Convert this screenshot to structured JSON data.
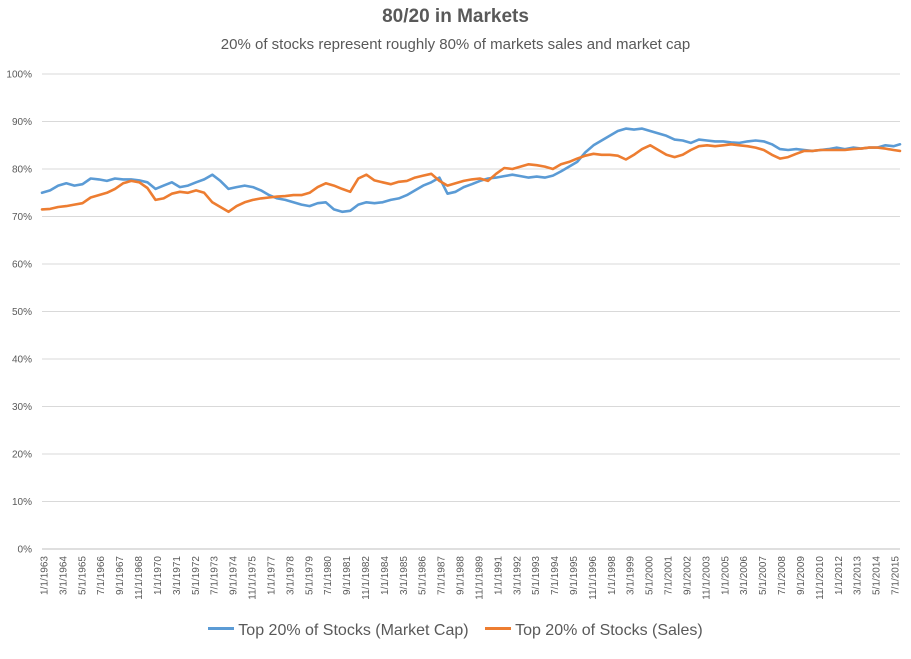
{
  "chart_data": {
    "type": "line",
    "title": "80/20 in Markets",
    "subtitle": "20% of stocks represent roughly 80% of markets sales and market cap",
    "xlabel": "",
    "ylabel": "",
    "ylim": [
      0,
      1.0
    ],
    "y_tick_labels": [
      "0%",
      "10%",
      "20%",
      "30%",
      "40%",
      "50%",
      "60%",
      "70%",
      "80%",
      "90%",
      "100%"
    ],
    "x_tick_labels": [
      "1/1/1963",
      "3/1/1964",
      "5/1/1965",
      "7/1/1966",
      "9/1/1967",
      "11/1/1968",
      "1/1/1970",
      "3/1/1971",
      "5/1/1972",
      "7/1/1973",
      "9/1/1974",
      "11/1/1975",
      "1/1/1977",
      "3/1/1978",
      "5/1/1979",
      "7/1/1980",
      "9/1/1981",
      "11/1/1982",
      "1/1/1984",
      "3/1/1985",
      "5/1/1986",
      "7/1/1987",
      "9/1/1988",
      "11/1/1989",
      "1/1/1991",
      "3/1/1992",
      "5/1/1993",
      "7/1/1994",
      "9/1/1995",
      "11/1/1996",
      "1/1/1998",
      "3/1/1999",
      "5/1/2000",
      "7/1/2001",
      "9/1/2002",
      "11/1/2003",
      "1/1/2005",
      "3/1/2006",
      "5/1/2007",
      "7/1/2008",
      "9/1/2009",
      "11/1/2010",
      "1/1/2012",
      "3/1/2013",
      "5/1/2014",
      "7/1/2015"
    ],
    "x": [
      1963.0,
      1963.5,
      1964.0,
      1964.5,
      1965.0,
      1965.5,
      1966.0,
      1966.5,
      1967.0,
      1967.5,
      1968.0,
      1968.5,
      1969.0,
      1969.5,
      1970.0,
      1970.5,
      1971.0,
      1971.5,
      1972.0,
      1972.5,
      1973.0,
      1973.5,
      1974.0,
      1974.5,
      1975.0,
      1975.5,
      1976.0,
      1976.5,
      1977.0,
      1977.5,
      1978.0,
      1978.5,
      1979.0,
      1979.5,
      1980.0,
      1980.5,
      1981.0,
      1981.5,
      1982.0,
      1982.5,
      1983.0,
      1983.5,
      1984.0,
      1984.5,
      1985.0,
      1985.5,
      1986.0,
      1986.5,
      1987.0,
      1987.5,
      1988.0,
      1988.5,
      1989.0,
      1989.5,
      1990.0,
      1990.5,
      1991.0,
      1991.5,
      1992.0,
      1992.5,
      1993.0,
      1993.5,
      1994.0,
      1994.5,
      1995.0,
      1995.5,
      1996.0,
      1996.5,
      1997.0,
      1997.5,
      1998.0,
      1998.5,
      1999.0,
      1999.5,
      2000.0,
      2000.5,
      2001.0,
      2001.5,
      2002.0,
      2002.5,
      2003.0,
      2003.5,
      2004.0,
      2004.5,
      2005.0,
      2005.5,
      2006.0,
      2006.5,
      2007.0,
      2007.5,
      2008.0,
      2008.5,
      2009.0,
      2009.5,
      2010.0,
      2010.5,
      2011.0,
      2011.5,
      2012.0,
      2012.5,
      2013.0,
      2013.5,
      2014.0,
      2014.5,
      2015.0,
      2015.5,
      2015.9
    ],
    "x_min": 1963.0,
    "x_max": 2015.9,
    "grid": true,
    "legend_position": "bottom",
    "series": [
      {
        "name": "Top 20% of Stocks (Market Cap)",
        "color": "#5B9BD5",
        "values": [
          0.75,
          0.755,
          0.765,
          0.77,
          0.765,
          0.768,
          0.78,
          0.778,
          0.775,
          0.78,
          0.778,
          0.778,
          0.776,
          0.772,
          0.758,
          0.765,
          0.772,
          0.762,
          0.765,
          0.772,
          0.778,
          0.788,
          0.775,
          0.758,
          0.762,
          0.765,
          0.762,
          0.755,
          0.745,
          0.738,
          0.735,
          0.73,
          0.725,
          0.722,
          0.728,
          0.73,
          0.715,
          0.71,
          0.712,
          0.725,
          0.73,
          0.728,
          0.73,
          0.735,
          0.738,
          0.745,
          0.755,
          0.765,
          0.772,
          0.782,
          0.748,
          0.752,
          0.762,
          0.768,
          0.775,
          0.78,
          0.782,
          0.785,
          0.788,
          0.785,
          0.782,
          0.784,
          0.782,
          0.786,
          0.795,
          0.805,
          0.815,
          0.835,
          0.85,
          0.86,
          0.87,
          0.88,
          0.885,
          0.883,
          0.885,
          0.88,
          0.875,
          0.87,
          0.862,
          0.86,
          0.855,
          0.862,
          0.86,
          0.858,
          0.858,
          0.856,
          0.855,
          0.858,
          0.86,
          0.858,
          0.852,
          0.842,
          0.84,
          0.842,
          0.84,
          0.838,
          0.84,
          0.842,
          0.845,
          0.842,
          0.845,
          0.843,
          0.845,
          0.845,
          0.85,
          0.848,
          0.852
        ]
      },
      {
        "name": "Top 20% of Stocks (Sales)",
        "color": "#ED7D31",
        "values": [
          0.715,
          0.716,
          0.72,
          0.722,
          0.725,
          0.728,
          0.74,
          0.745,
          0.75,
          0.758,
          0.77,
          0.775,
          0.772,
          0.76,
          0.735,
          0.738,
          0.748,
          0.752,
          0.75,
          0.755,
          0.75,
          0.73,
          0.72,
          0.71,
          0.722,
          0.73,
          0.735,
          0.738,
          0.74,
          0.742,
          0.743,
          0.745,
          0.745,
          0.75,
          0.762,
          0.77,
          0.765,
          0.758,
          0.752,
          0.78,
          0.788,
          0.776,
          0.772,
          0.768,
          0.773,
          0.775,
          0.782,
          0.786,
          0.79,
          0.775,
          0.765,
          0.77,
          0.775,
          0.778,
          0.78,
          0.775,
          0.79,
          0.802,
          0.8,
          0.805,
          0.81,
          0.808,
          0.805,
          0.8,
          0.81,
          0.815,
          0.822,
          0.828,
          0.832,
          0.83,
          0.83,
          0.828,
          0.82,
          0.83,
          0.842,
          0.85,
          0.84,
          0.83,
          0.825,
          0.83,
          0.84,
          0.848,
          0.85,
          0.848,
          0.85,
          0.852,
          0.85,
          0.848,
          0.845,
          0.84,
          0.83,
          0.822,
          0.825,
          0.832,
          0.838,
          0.838,
          0.84,
          0.84,
          0.84,
          0.84,
          0.842,
          0.843,
          0.845,
          0.845,
          0.843,
          0.84,
          0.838
        ]
      }
    ]
  }
}
